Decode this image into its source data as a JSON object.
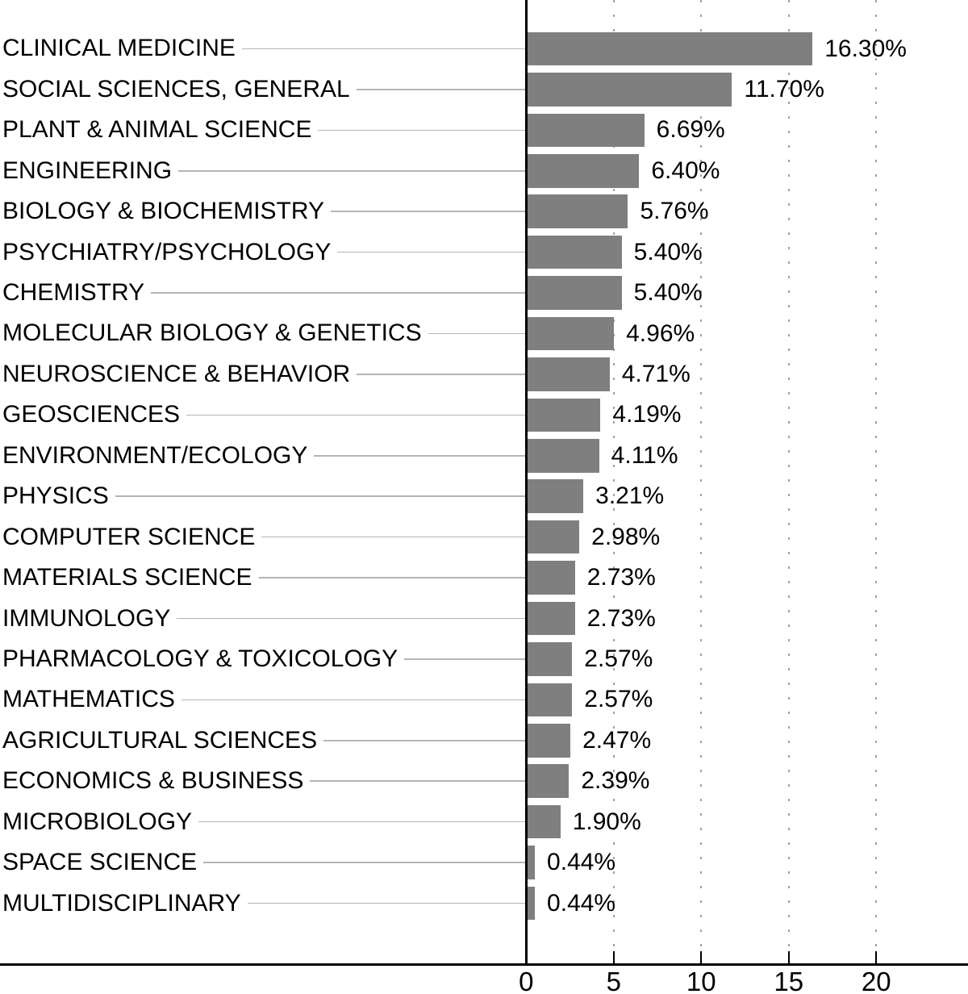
{
  "chart_data": {
    "type": "bar",
    "orientation": "horizontal",
    "title": "",
    "xlabel": "",
    "ylabel": "",
    "xlim": [
      0,
      25.3
    ],
    "xticks": [
      0,
      5,
      10,
      15,
      20
    ],
    "grid": "vertical-dotted-at-major-ticks",
    "legend": "none",
    "categories": [
      "CLINICAL MEDICINE",
      "SOCIAL SCIENCES, GENERAL",
      "PLANT & ANIMAL SCIENCE",
      "ENGINEERING",
      "BIOLOGY & BIOCHEMISTRY",
      "PSYCHIATRY/PSYCHOLOGY",
      "CHEMISTRY",
      "MOLECULAR BIOLOGY & GENETICS",
      "NEUROSCIENCE & BEHAVIOR",
      "GEOSCIENCES",
      "ENVIRONMENT/ECOLOGY",
      "PHYSICS",
      "COMPUTER SCIENCE",
      "MATERIALS SCIENCE",
      "IMMUNOLOGY",
      "PHARMACOLOGY & TOXICOLOGY",
      "MATHEMATICS",
      "AGRICULTURAL SCIENCES",
      "ECONOMICS & BUSINESS",
      "MICROBIOLOGY",
      "SPACE SCIENCE",
      "MULTIDISCIPLINARY"
    ],
    "values": [
      16.3,
      11.7,
      6.69,
      6.4,
      5.76,
      5.4,
      5.4,
      4.96,
      4.71,
      4.19,
      4.11,
      3.21,
      2.98,
      2.73,
      2.73,
      2.57,
      2.57,
      2.47,
      2.39,
      1.9,
      0.44,
      0.44
    ],
    "value_labels": [
      "16.30%",
      "11.70%",
      "6.69%",
      "6.40%",
      "5.76%",
      "5.40%",
      "5.40%",
      "4.96%",
      "4.71%",
      "4.19%",
      "4.11%",
      "3.21%",
      "2.98%",
      "2.73%",
      "2.73%",
      "2.57%",
      "2.57%",
      "2.47%",
      "2.39%",
      "1.90%",
      "0.44%",
      "0.44%"
    ],
    "tick_labels": [
      "0",
      "5",
      "10",
      "15",
      "20"
    ],
    "colors": {
      "bar": "#7f7f7f",
      "leader_line": "#b5b5b5",
      "gridline": "#a0a0a0",
      "axis": "#000000",
      "text": "#000000",
      "background": "#ffffff"
    }
  }
}
